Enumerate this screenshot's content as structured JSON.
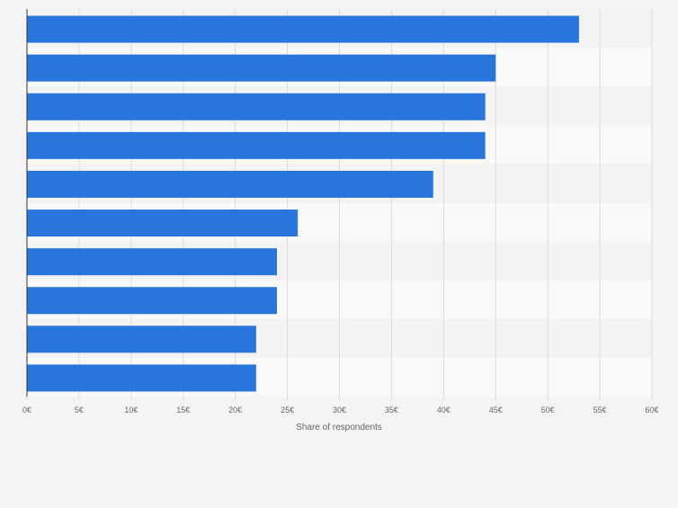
{
  "chart_data": {
    "type": "bar",
    "orientation": "horizontal",
    "categories": [
      "",
      "",
      "",
      "",
      "",
      "",
      "",
      "",
      "",
      ""
    ],
    "values": [
      53,
      45,
      44,
      44,
      39,
      26,
      24,
      24,
      22,
      22
    ],
    "xlabel": "Share of respondents",
    "ylabel": "",
    "xlim": [
      0,
      60
    ],
    "x_ticks": [
      {
        "value": 0,
        "label": "0€"
      },
      {
        "value": 5,
        "label": "5€"
      },
      {
        "value": 10,
        "label": "10€"
      },
      {
        "value": 15,
        "label": "15€"
      },
      {
        "value": 20,
        "label": "20€"
      },
      {
        "value": 25,
        "label": "25€"
      },
      {
        "value": 30,
        "label": "30€"
      },
      {
        "value": 35,
        "label": "35€"
      },
      {
        "value": 40,
        "label": "40€"
      },
      {
        "value": 45,
        "label": "45€"
      },
      {
        "value": 50,
        "label": "50€"
      },
      {
        "value": 55,
        "label": "55€"
      },
      {
        "value": 60,
        "label": "60€"
      }
    ],
    "grid": true,
    "legend": "none",
    "colors": {
      "bar": "#2876dd",
      "background": "#f4f4f4",
      "band_light": "#f9f9f9",
      "band_dark": "#f3f3f3",
      "grid": "#dcdcdc",
      "axis": "#333333",
      "text": "#666666"
    }
  }
}
